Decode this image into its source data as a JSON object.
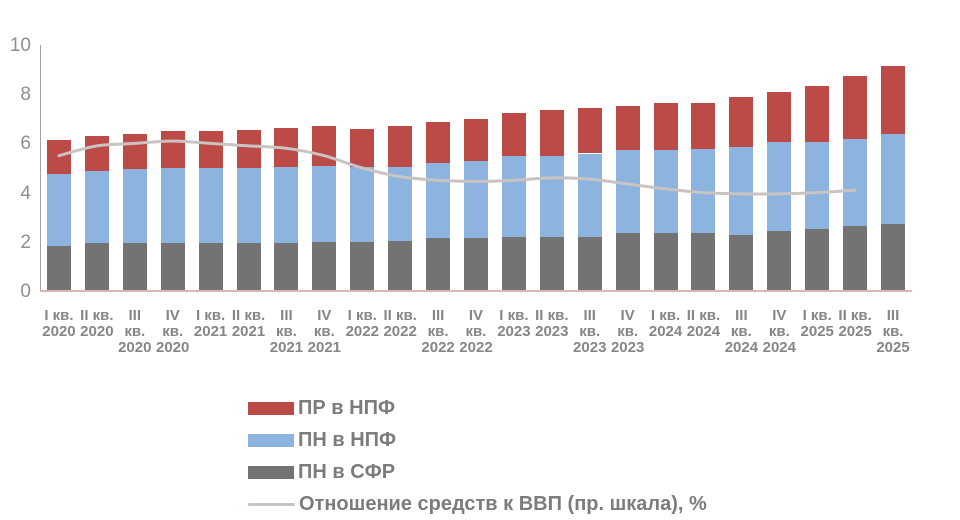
{
  "chart_data": {
    "type": "bar",
    "stacked": true,
    "title": "",
    "xlabel": "",
    "ylabel": "",
    "ylim": [
      0,
      10
    ],
    "yticks": [
      "0",
      "2",
      "4",
      "6",
      "8",
      "10"
    ],
    "grid": false,
    "legend_position": "bottom-left",
    "categories": [
      "I кв. 2020",
      "II кв. 2020",
      "III кв. 2020",
      "IV кв. 2020",
      "I кв. 2021",
      "II кв. 2021",
      "III кв. 2021",
      "IV кв. 2021",
      "I кв. 2022",
      "II кв. 2022",
      "III кв. 2022",
      "IV кв. 2022",
      "I кв. 2023",
      "II кв. 2023",
      "III кв. 2023",
      "IV кв. 2023",
      "I кв. 2024",
      "II кв. 2024",
      "III кв. 2024",
      "IV кв. 2024",
      "I кв. 2025",
      "II кв. 2025",
      "III кв. 2025"
    ],
    "category_label_lines": [
      [
        "I кв.",
        "2020"
      ],
      [
        "II кв.",
        "2020"
      ],
      [
        "III",
        "кв.",
        "2020"
      ],
      [
        "IV",
        "кв.",
        "2020"
      ],
      [
        "I кв.",
        "2021"
      ],
      [
        "II кв.",
        "2021"
      ],
      [
        "III",
        "кв.",
        "2021"
      ],
      [
        "IV",
        "кв.",
        "2021"
      ],
      [
        "I кв.",
        "2022"
      ],
      [
        "II кв.",
        "2022"
      ],
      [
        "III",
        "кв.",
        "2022"
      ],
      [
        "IV",
        "кв.",
        "2022"
      ],
      [
        "I кв.",
        "2023"
      ],
      [
        "II кв.",
        "2023"
      ],
      [
        "III",
        "кв.",
        "2023"
      ],
      [
        "IV",
        "кв.",
        "2023"
      ],
      [
        "I кв.",
        "2024"
      ],
      [
        "II кв.",
        "2024"
      ],
      [
        "III",
        "кв.",
        "2024"
      ],
      [
        "IV",
        "кв.",
        "2024"
      ],
      [
        "I кв.",
        "2025"
      ],
      [
        "II кв.",
        "2025"
      ],
      [
        "III",
        "кв.",
        "2025"
      ]
    ],
    "series": [
      {
        "name": "ПН в СФР",
        "stack_order": "bottom",
        "color": "#737373",
        "values": [
          1.8,
          1.9,
          1.9,
          1.9,
          1.9,
          1.9,
          1.9,
          1.95,
          1.95,
          2.0,
          2.1,
          2.1,
          2.15,
          2.15,
          2.15,
          2.3,
          2.3,
          2.3,
          2.25,
          2.4,
          2.5,
          2.6,
          2.7
        ]
      },
      {
        "name": "ПН в НПФ",
        "stack_order": "middle",
        "color": "#8db3df",
        "values": [
          2.9,
          2.95,
          3.0,
          3.05,
          3.05,
          3.05,
          3.1,
          3.1,
          3.05,
          3.0,
          3.05,
          3.15,
          3.3,
          3.3,
          3.4,
          3.4,
          3.4,
          3.45,
          3.55,
          3.6,
          3.5,
          3.55,
          3.65
        ]
      },
      {
        "name": "ПР в НПФ",
        "stack_order": "top",
        "color": "#bc4a46",
        "values": [
          1.4,
          1.4,
          1.45,
          1.5,
          1.5,
          1.55,
          1.6,
          1.6,
          1.55,
          1.65,
          1.7,
          1.7,
          1.75,
          1.85,
          1.85,
          1.8,
          1.9,
          1.85,
          2.05,
          2.05,
          2.3,
          2.55,
          2.75
        ]
      }
    ],
    "line_series": {
      "name": "Отношение средств к ВВП (пр. шкала), %",
      "color": "#c9c3c2",
      "stroke_width": 3,
      "values": [
        5.5,
        5.9,
        6.0,
        6.1,
        6.0,
        5.9,
        5.8,
        5.5,
        5.0,
        4.65,
        4.5,
        4.45,
        4.5,
        4.6,
        4.55,
        4.35,
        4.15,
        4.0,
        3.95,
        3.95,
        4.0,
        4.1,
        null
      ]
    }
  },
  "legend": {
    "items": [
      {
        "label": "ПР в НПФ",
        "swatch": "box",
        "color": "#bc4a46"
      },
      {
        "label": "ПН в НПФ",
        "swatch": "box",
        "color": "#8db3df"
      },
      {
        "label": "ПН в СФР",
        "swatch": "box",
        "color": "#737373"
      },
      {
        "label": "Отношение средств к ВВП (пр. шкала), %",
        "swatch": "line",
        "color": "#c9c3c2"
      }
    ]
  },
  "colors": {
    "background": "#ffffff",
    "y_axis_line": "#a3a3a3",
    "x_axis_line": "#d8b7b3",
    "tick_text": "#8f8f8f",
    "x_label_text": "#868686",
    "legend_text": "#7c7c7c"
  }
}
